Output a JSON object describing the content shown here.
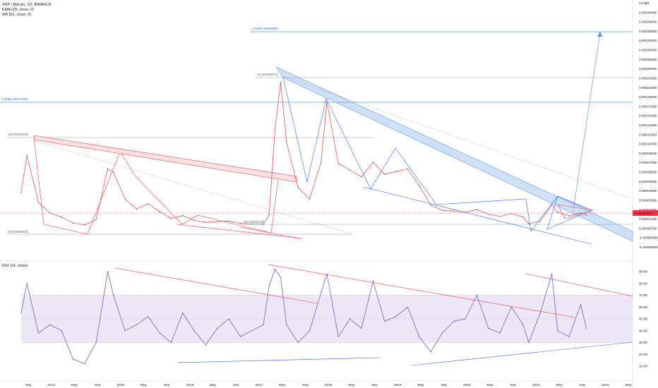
{
  "header": {
    "symbol": "XRP / Bitcoin, 1D, BINANCE",
    "ema": "EMA (20, close, 0)",
    "ma": "MA (50, close, 0)",
    "rsi": "RSI (14, close)"
  },
  "axis_labels": {
    "price_ticks": [
      "0.0 ฿/¢",
      "0.00040000",
      "0.00038000",
      "0.00036000",
      "0.00033000",
      "0.00030000",
      "0.00028000",
      "0.00026000",
      "0.00023000",
      "0.00021000",
      "0.00019000",
      "0.00017000",
      "0.00015000",
      "0.00013000",
      "0.00011500",
      "0.00010000",
      "0.00008500",
      "0.00007000",
      "0.00006000",
      "0.00005000",
      "0.00004000",
      "0.00003000",
      "0.00002000",
      "0.00001400",
      "0.00000700",
      "-0.00000000",
      "-0.00000650"
    ],
    "rsi_ticks": [
      "90.00",
      "80.00",
      "70.00",
      "60.00",
      "50.00",
      "40.00",
      "30.00",
      "20.00",
      "10.00"
    ],
    "time_ticks": [
      "Sep",
      "2014",
      "May",
      "Sep",
      "2015",
      "May",
      "Sep",
      "2016",
      "May",
      "Sep",
      "2017",
      "May",
      "Sep",
      "2018",
      "May",
      "Sep",
      "2019",
      "May",
      "Sep",
      "2020",
      "May",
      "Sep",
      "2021",
      "May",
      "Sep",
      "2022",
      "May"
    ],
    "current_price": "0.00002117"
  },
  "fib_labels": {
    "top_high": "1(0.00022672)",
    "ext_1618_top": "1.618(0.00035950)",
    "ext_1618_left": "1.618(0.00017462)",
    "early_high": "1(0.00010943)",
    "early_low": "0(0.00000642)",
    "low_2017": "0(0.00000719)"
  },
  "colors": {
    "candle_up": "#26a69a",
    "candle_down": "#ef5350",
    "ema": "#e57373",
    "ma": "#9e9e9e",
    "rsi_line": "#7e57c2",
    "rsi_band": "#ede7f6",
    "fib_line": "#5b9bd5",
    "trend_red": "#f23645",
    "trend_blue": "#2962ff",
    "channel_fill": "#cfe0f7",
    "current_price_bg": "#f23645"
  },
  "chart_data": {
    "type": "line",
    "title": "XRP / Bitcoin, 1D, BINANCE",
    "xlabel": "",
    "ylabel": "",
    "x_range": [
      "2013-08",
      "2022-06"
    ],
    "ylim": [
      -6.5e-06,
      0.0004
    ],
    "current_value": 2.117e-05,
    "series": [
      {
        "name": "XRP / Bitcoin",
        "x": [
          "2013-08",
          "2013-09",
          "2013-11",
          "2014-01",
          "2014-03",
          "2014-05",
          "2014-07",
          "2014-09",
          "2014-11",
          "2014-12",
          "2015-02",
          "2015-04",
          "2015-06",
          "2015-08",
          "2015-10",
          "2015-12",
          "2016-02",
          "2016-04",
          "2016-06",
          "2016-08",
          "2016-10",
          "2016-12",
          "2017-02",
          "2017-03",
          "2017-04",
          "2017-05",
          "2017-06",
          "2017-08",
          "2017-10",
          "2017-12",
          "2018-01",
          "2018-03",
          "2018-05",
          "2018-07",
          "2018-09",
          "2018-11",
          "2019-01",
          "2019-03",
          "2019-05",
          "2019-07",
          "2019-09",
          "2019-11",
          "2020-01",
          "2020-03",
          "2020-05",
          "2020-07",
          "2020-09",
          "2020-11",
          "2020-12",
          "2021-02",
          "2021-04",
          "2021-05",
          "2021-07",
          "2021-09",
          "2021-10"
        ],
        "values": [
          5.5e-05,
          0.00011,
          4e-05,
          2.4e-05,
          1.8e-05,
          9e-06,
          6e-06,
          1.4e-05,
          9e-05,
          8.5e-05,
          4.5e-05,
          3e-05,
          3.8e-05,
          2.6e-05,
          1.6e-05,
          2e-05,
          1.3e-05,
          1e-05,
          1.1e-05,
          1.2e-05,
          8.5e-06,
          7.5e-06,
          7.2e-06,
          2.2e-05,
          0.00015,
          0.00022,
          0.00013,
          6.2e-05,
          4.5e-05,
          0.0001,
          0.00019,
          9.8e-05,
          8.8e-05,
          7.8e-05,
          0.0001,
          8.2e-05,
          8.6e-05,
          9e-05,
          6.5e-05,
          3.6e-05,
          2.8e-05,
          2.7e-05,
          2.5e-05,
          2.9e-05,
          2.2e-05,
          1.9e-05,
          2.3e-05,
          1.8e-05,
          8e-06,
          1.2e-05,
          3.6e-05,
          2.5e-05,
          2e-05,
          2.4e-05,
          2.117e-05
        ]
      },
      {
        "name": "RSI (14, close)",
        "x": [
          "2013-08",
          "2013-09",
          "2013-11",
          "2014-01",
          "2014-03",
          "2014-05",
          "2014-07",
          "2014-09",
          "2014-11",
          "2014-12",
          "2015-02",
          "2015-04",
          "2015-06",
          "2015-08",
          "2015-10",
          "2015-12",
          "2016-02",
          "2016-04",
          "2016-06",
          "2016-08",
          "2016-10",
          "2016-12",
          "2017-02",
          "2017-03",
          "2017-04",
          "2017-05",
          "2017-06",
          "2017-08",
          "2017-10",
          "2017-12",
          "2018-01",
          "2018-03",
          "2018-05",
          "2018-07",
          "2018-09",
          "2018-11",
          "2019-01",
          "2019-03",
          "2019-05",
          "2019-07",
          "2019-09",
          "2019-11",
          "2020-01",
          "2020-03",
          "2020-05",
          "2020-07",
          "2020-09",
          "2020-11",
          "2020-12",
          "2021-02",
          "2021-04",
          "2021-05",
          "2021-07",
          "2021-09",
          "2021-10"
        ],
        "values": [
          55,
          80,
          38,
          45,
          40,
          16,
          12,
          30,
          90,
          70,
          40,
          45,
          52,
          38,
          30,
          55,
          40,
          28,
          42,
          50,
          35,
          40,
          45,
          78,
          92,
          85,
          45,
          30,
          40,
          72,
          88,
          35,
          50,
          42,
          82,
          48,
          52,
          60,
          35,
          22,
          38,
          48,
          50,
          70,
          42,
          38,
          60,
          45,
          30,
          55,
          88,
          40,
          35,
          62,
          42
        ],
        "ylim": [
          5,
          95
        ],
        "bands": [
          30,
          70
        ]
      }
    ]
  }
}
